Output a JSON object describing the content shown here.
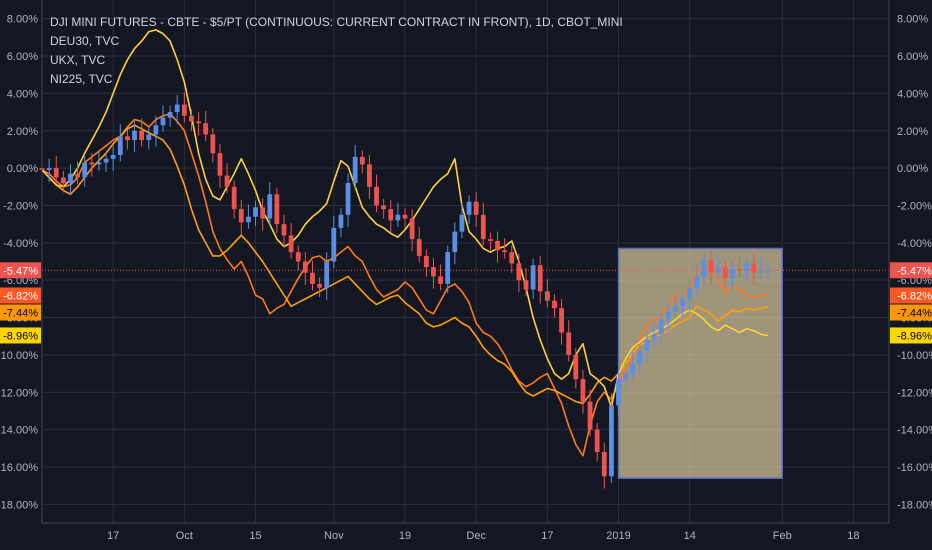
{
  "legend": {
    "main": "DJI MINI FUTURES - CBTE - $5/PT (CONTINUOUS: CURRENT CONTRACT IN FRONT), 1D, CBOT_MINI",
    "items": [
      "DEU30, TVC",
      "UKX, TVC",
      "NI225, TVC"
    ]
  },
  "colors": {
    "background": "#131722",
    "grid": "#2a2e39",
    "candle_up": "#5b8ee6",
    "candle_down": "#ef5350",
    "deu30": "#ff7a1a",
    "ukx": "#ff9f0f",
    "ni225": "#ffd13a",
    "dji_tag": "#ef5350",
    "deu30_tag": "#ff5722",
    "ukx_tag": "#ff9800",
    "ni225_tag": "#ffd700",
    "box_fill": "#f3e3b2",
    "box_border": "#5c6bc0"
  },
  "chart_data": {
    "type": "line",
    "scale": "percent",
    "ylim": [
      -19,
      9
    ],
    "yticks": [
      "8.00%",
      "6.00%",
      "4.00%",
      "2.00%",
      "0.00%",
      "-2.00%",
      "-4.00%",
      "-6.00%",
      "-8.00%",
      "-10.00%",
      "-12.00%",
      "-14.00%",
      "-16.00%",
      "-18.00%"
    ],
    "xticks": [
      "17",
      "Oct",
      "15",
      "Nov",
      "19",
      "Dec",
      "17",
      "2019",
      "14",
      "Feb",
      "18"
    ],
    "x_tick_days": [
      10,
      20,
      30,
      41,
      51,
      61,
      71,
      81,
      91,
      104,
      114
    ],
    "x_range_days": [
      0,
      119
    ],
    "price_tags": [
      {
        "label": "-5.47%",
        "value": -5.47,
        "series": "DJI"
      },
      {
        "label": "-6.82%",
        "value": -6.82,
        "series": "DEU30"
      },
      {
        "label": "-7.44%",
        "value": -7.44,
        "series": "UKX"
      },
      {
        "label": "-8.96%",
        "value": -8.96,
        "series": "NI225"
      }
    ],
    "series": [
      {
        "name": "DJI",
        "style": "candles",
        "values": [
          -0.1,
          0.0,
          -0.5,
          -0.8,
          -0.3,
          -0.5,
          0.3,
          0.2,
          0.3,
          0.5,
          0.7,
          1.7,
          1.5,
          2.0,
          1.5,
          1.8,
          2.3,
          2.7,
          3.0,
          3.4,
          2.8,
          2.5,
          2.4,
          1.8,
          0.8,
          -0.4,
          -1.0,
          -2.2,
          -2.9,
          -2.6,
          -2.1,
          -2.7,
          -1.4,
          -3.0,
          -3.6,
          -4.5,
          -5.0,
          -5.6,
          -6.2,
          -6.4,
          -5.0,
          -3.2,
          -2.5,
          -0.8,
          0.6,
          0.2,
          -1.0,
          -2.0,
          -2.2,
          -2.8,
          -2.5,
          -2.7,
          -3.8,
          -4.7,
          -5.3,
          -5.8,
          -6.2,
          -4.5,
          -3.4,
          -2.5,
          -1.8,
          -2.5,
          -3.8,
          -3.9,
          -4.4,
          -4.5,
          -5.1,
          -6.0,
          -6.5,
          -5.2,
          -6.6,
          -7.1,
          -7.5,
          -8.8,
          -10.0,
          -11.3,
          -12.5,
          -14.0,
          -15.2,
          -16.5,
          -12.7,
          -11.3,
          -11.0,
          -10.5,
          -9.8,
          -9.2,
          -8.9,
          -8.1,
          -7.7,
          -7.4,
          -7.0,
          -6.4,
          -5.8,
          -4.9,
          -5.6,
          -5.3,
          -5.9,
          -5.4,
          -5.5,
          -5.1,
          -5.6,
          -5.5,
          -5.47
        ]
      },
      {
        "name": "DEU30",
        "style": "line",
        "values": [
          -0.1,
          -0.3,
          -0.7,
          -1.0,
          -0.9,
          -0.5,
          0.3,
          0.6,
          0.9,
          1.2,
          1.5,
          1.7,
          2.2,
          2.6,
          2.5,
          2.2,
          2.6,
          2.8,
          2.9,
          2.5,
          2.0,
          0.8,
          -0.4,
          -1.8,
          -3.4,
          -4.3,
          -4.9,
          -5.4,
          -5.0,
          -5.8,
          -6.8,
          -7.0,
          -7.8,
          -7.5,
          -7.3,
          -6.6,
          -5.9,
          -5.3,
          -4.8,
          -4.7,
          -5.0,
          -4.8,
          -4.5,
          -4.2,
          -4.7,
          -5.0,
          -5.8,
          -6.5,
          -6.9,
          -6.7,
          -6.5,
          -6.1,
          -6.4,
          -7.0,
          -7.6,
          -7.8,
          -7.1,
          -6.4,
          -6.2,
          -6.6,
          -7.2,
          -8.3,
          -8.8,
          -9.0,
          -9.4,
          -10.0,
          -10.8,
          -11.4,
          -11.7,
          -11.5,
          -11.2,
          -11.0,
          -11.8,
          -12.6,
          -13.8,
          -14.8,
          -15.4,
          -13.8,
          -12.5,
          -12.0,
          -12.4,
          -11.5,
          -10.8,
          -10.0,
          -9.2,
          -8.4,
          -8.1,
          -7.9,
          -7.3,
          -6.8,
          -6.7,
          -6.5,
          -5.4,
          -5.3,
          -5.1,
          -6.0,
          -6.7,
          -6.3,
          -6.5,
          -6.8,
          -6.9,
          -6.8,
          -6.82
        ]
      },
      {
        "name": "UKX",
        "style": "line",
        "values": [
          -0.1,
          -0.5,
          -0.9,
          -1.2,
          -1.4,
          -1.0,
          -0.5,
          0.0,
          0.4,
          0.8,
          1.3,
          1.7,
          2.1,
          2.3,
          2.1,
          1.9,
          1.7,
          1.5,
          1.0,
          0.1,
          -0.9,
          -2.2,
          -3.3,
          -4.0,
          -4.7,
          -4.7,
          -4.4,
          -4.0,
          -3.6,
          -4.0,
          -4.5,
          -5.0,
          -5.6,
          -6.2,
          -6.8,
          -7.4,
          -7.2,
          -7.0,
          -6.8,
          -6.6,
          -6.4,
          -6.2,
          -6.0,
          -5.8,
          -6.2,
          -6.6,
          -7.0,
          -7.3,
          -7.1,
          -6.9,
          -6.8,
          -7.2,
          -7.5,
          -7.8,
          -8.3,
          -8.5,
          -8.4,
          -8.2,
          -8.0,
          -8.3,
          -8.5,
          -9.0,
          -9.6,
          -10.0,
          -10.3,
          -10.5,
          -10.9,
          -11.5,
          -12.0,
          -12.2,
          -12.0,
          -11.8,
          -11.9,
          -12.1,
          -12.3,
          -12.5,
          -12.6,
          -12.1,
          -11.5,
          -11.2,
          -11.4,
          -11.0,
          -10.5,
          -9.9,
          -9.5,
          -9.2,
          -9.0,
          -8.9,
          -8.7,
          -8.4,
          -8.2,
          -8.0,
          -7.4,
          -7.6,
          -7.8,
          -8.2,
          -7.9,
          -7.6,
          -7.7,
          -7.5,
          -7.6,
          -7.5,
          -7.44
        ]
      },
      {
        "name": "NI225",
        "style": "line",
        "values": [
          -0.1,
          -0.5,
          -0.9,
          -1.0,
          -0.6,
          0.0,
          0.8,
          1.5,
          2.2,
          3.0,
          4.0,
          5.0,
          5.8,
          6.4,
          6.8,
          7.3,
          7.4,
          7.2,
          6.8,
          5.8,
          4.6,
          2.8,
          0.8,
          -0.6,
          -1.5,
          -1.7,
          -1.0,
          -0.3,
          0.5,
          -0.3,
          -1.2,
          -2.3,
          -3.0,
          -3.8,
          -4.2,
          -4.0,
          -3.6,
          -3.0,
          -2.6,
          -2.3,
          -1.9,
          -0.7,
          0.4,
          0.1,
          -1.0,
          -2.1,
          -2.6,
          -3.0,
          -3.2,
          -3.5,
          -3.7,
          -3.3,
          -2.8,
          -2.2,
          -1.6,
          -1.0,
          -0.6,
          -0.3,
          0.5,
          -2.0,
          -3.4,
          -3.8,
          -4.3,
          -4.5,
          -4.3,
          -4.2,
          -3.9,
          -5.0,
          -6.4,
          -8.0,
          -9.2,
          -10.2,
          -11.0,
          -11.3,
          -11.0,
          -10.0,
          -9.4,
          -11.0,
          -11.3,
          -11.7,
          -12.8,
          -11.0,
          -10.2,
          -9.6,
          -9.3,
          -9.0,
          -8.8,
          -8.6,
          -8.4,
          -8.1,
          -7.8,
          -7.6,
          -7.8,
          -8.1,
          -8.5,
          -8.7,
          -8.4,
          -8.6,
          -8.8,
          -8.6,
          -8.7,
          -8.9,
          -8.96
        ]
      }
    ]
  }
}
